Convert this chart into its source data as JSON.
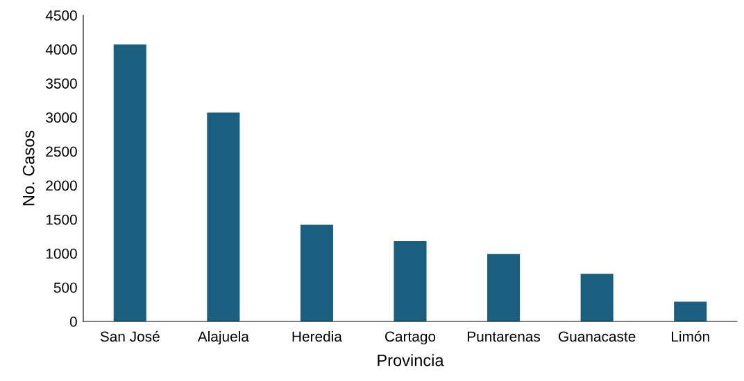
{
  "chart_data": {
    "type": "bar",
    "xlabel": "Provincia",
    "ylabel": "No. Casos",
    "categories": [
      "San José",
      "Alajuela",
      "Heredia",
      "Cartago",
      "Puntarenas",
      "Guanacaste",
      "Limón"
    ],
    "values": [
      4070,
      3070,
      1420,
      1180,
      990,
      700,
      290
    ],
    "color": "#1a5f80",
    "ylim": [
      0,
      4500
    ],
    "yticks": [
      0,
      500,
      1000,
      1500,
      2000,
      2500,
      3000,
      3500,
      4000,
      4500
    ],
    "grid": false
  }
}
